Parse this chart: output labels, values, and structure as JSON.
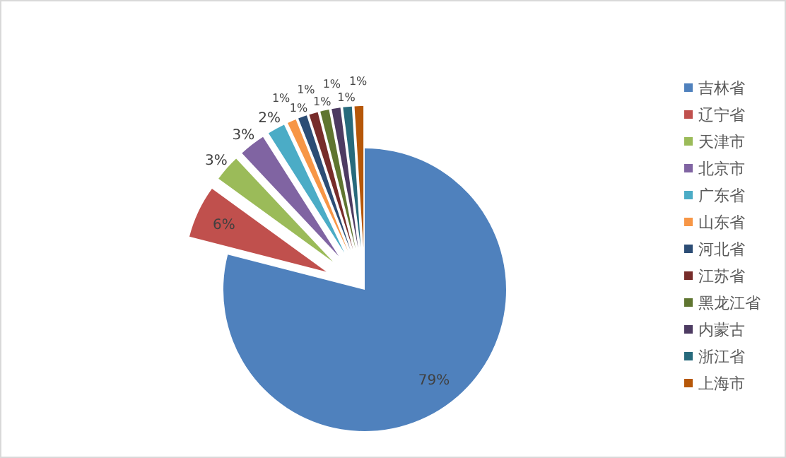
{
  "chart_data": {
    "type": "pie",
    "categories": [
      "吉林省",
      "辽宁省",
      "天津市",
      "北京市",
      "广东省",
      "山东省",
      "河北省",
      "江苏省",
      "黑龙江省",
      "内蒙古",
      "浙江省",
      "上海市"
    ],
    "values": [
      79,
      6,
      3,
      3,
      2,
      1,
      1,
      1,
      1,
      1,
      1,
      1
    ],
    "colors": [
      "#4f81bd",
      "#c0504d",
      "#9bbb59",
      "#8064a2",
      "#4bacc6",
      "#f79646",
      "#2c4d75",
      "#772c2a",
      "#5f7530",
      "#4d3b62",
      "#276a7c",
      "#b65708"
    ],
    "value_labels": [
      "79%",
      "6%",
      "3%",
      "3%",
      "2%",
      "1%",
      "1%",
      "1%",
      "1%",
      "1%",
      "1%",
      "1%"
    ],
    "legend": "right"
  }
}
